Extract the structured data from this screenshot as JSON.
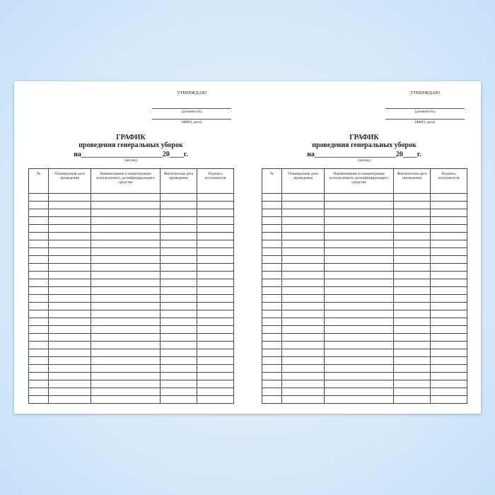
{
  "pages": [
    {
      "approve": "УТВЕРЖДАЮ",
      "position_caption": "(должность)",
      "name_caption": "(ФИО, дата)",
      "title": "ГРАФИК",
      "subtitle": "проведения генеральных уборок",
      "period_line": "на_______________________20____г.",
      "month_caption": "(месяц)",
      "columns": [
        "№",
        "Планируемая дата проведения",
        "Наименование и концентрация используемого дезинфицирующего средства",
        "Фактическая дата проведения",
        "Подпись исполнителя"
      ]
    },
    {
      "approve": "УТВЕРЖДАЮ",
      "position_caption": "(должность)",
      "name_caption": "(ФИО, дата)",
      "title": "ГРАФИК",
      "subtitle": "проведения генеральных уборок",
      "period_line": "на_______________________20____г.",
      "month_caption": "(месяц)",
      "columns": [
        "№",
        "Планируемая дата проведения",
        "Наименование и концентрация используемого дезинфицирующего средства",
        "Фактическая дата проведения",
        "Подпись исполнителя"
      ]
    }
  ]
}
